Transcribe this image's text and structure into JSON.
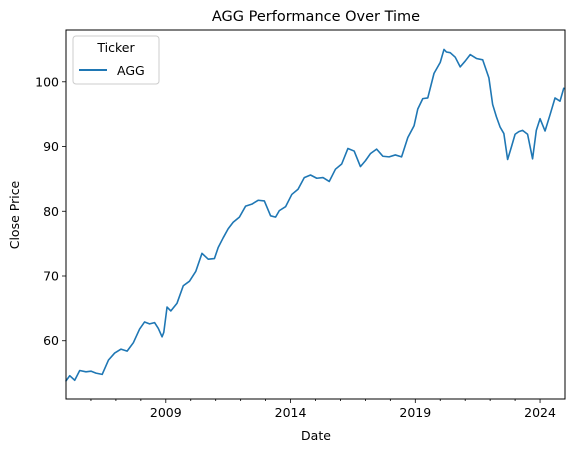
{
  "chart_data": {
    "type": "line",
    "title": "AGG Performance Over Time",
    "xlabel": "Date",
    "ylabel": "Close Price",
    "xlim": [
      2005.0,
      2025.0
    ],
    "ylim": [
      51.0,
      108.0
    ],
    "x_ticks": [
      {
        "value": 2009,
        "label": "2009"
      },
      {
        "value": 2014,
        "label": "2014"
      },
      {
        "value": 2019,
        "label": "2019"
      },
      {
        "value": 2024,
        "label": "2024"
      }
    ],
    "y_ticks": [
      {
        "value": 60,
        "label": "60"
      },
      {
        "value": 70,
        "label": "70"
      },
      {
        "value": 80,
        "label": "80"
      },
      {
        "value": 90,
        "label": "90"
      },
      {
        "value": 100,
        "label": "100"
      }
    ],
    "grid": false,
    "legend": {
      "title": "Ticker",
      "position": "upper-left",
      "entries": [
        "AGG"
      ]
    },
    "series": [
      {
        "name": "AGG",
        "color": "#1f77b4",
        "x": [
          2005.0,
          2005.15,
          2005.35,
          2005.55,
          2005.8,
          2006.0,
          2006.2,
          2006.45,
          2006.7,
          2006.95,
          2007.2,
          2007.45,
          2007.7,
          2007.95,
          2008.15,
          2008.35,
          2008.55,
          2008.7,
          2008.85,
          2008.92,
          2009.05,
          2009.2,
          2009.45,
          2009.7,
          2009.95,
          2010.2,
          2010.45,
          2010.7,
          2010.95,
          2011.1,
          2011.3,
          2011.5,
          2011.7,
          2011.95,
          2012.2,
          2012.45,
          2012.7,
          2012.95,
          2013.2,
          2013.4,
          2013.55,
          2013.8,
          2014.05,
          2014.3,
          2014.55,
          2014.8,
          2015.05,
          2015.3,
          2015.55,
          2015.8,
          2016.05,
          2016.3,
          2016.55,
          2016.8,
          2017.0,
          2017.2,
          2017.45,
          2017.7,
          2017.95,
          2018.2,
          2018.45,
          2018.7,
          2018.95,
          2019.1,
          2019.3,
          2019.5,
          2019.75,
          2020.0,
          2020.15,
          2020.25,
          2020.4,
          2020.6,
          2020.8,
          2021.0,
          2021.2,
          2021.45,
          2021.7,
          2021.95,
          2022.1,
          2022.25,
          2022.4,
          2022.55,
          2022.7,
          2022.85,
          2023.0,
          2023.15,
          2023.3,
          2023.5,
          2023.7,
          2023.85,
          2024.0,
          2024.2,
          2024.4,
          2024.6,
          2024.8,
          2024.95
        ],
        "values": [
          53.8,
          54.6,
          53.9,
          55.4,
          55.2,
          55.3,
          55.0,
          54.8,
          57.0,
          58.1,
          58.7,
          58.4,
          59.7,
          61.8,
          62.9,
          62.6,
          62.8,
          61.9,
          60.6,
          61.3,
          65.2,
          64.6,
          65.8,
          68.5,
          69.2,
          70.7,
          73.5,
          72.6,
          72.7,
          74.4,
          75.9,
          77.3,
          78.3,
          79.1,
          80.8,
          81.1,
          81.7,
          81.6,
          79.3,
          79.1,
          80.1,
          80.7,
          82.6,
          83.4,
          85.2,
          85.6,
          85.1,
          85.2,
          84.6,
          86.5,
          87.3,
          89.7,
          89.3,
          86.9,
          87.8,
          88.9,
          89.6,
          88.5,
          88.4,
          88.7,
          88.4,
          91.4,
          93.2,
          95.8,
          97.4,
          97.5,
          101.3,
          103.0,
          105.0,
          104.6,
          104.5,
          103.8,
          102.3,
          103.2,
          104.2,
          103.6,
          103.4,
          100.6,
          96.5,
          94.6,
          93.0,
          92.0,
          88.0,
          89.9,
          91.9,
          92.3,
          92.5,
          91.9,
          88.1,
          92.5,
          94.3,
          92.4,
          94.9,
          97.5,
          97.0,
          99.0
        ]
      }
    ]
  }
}
